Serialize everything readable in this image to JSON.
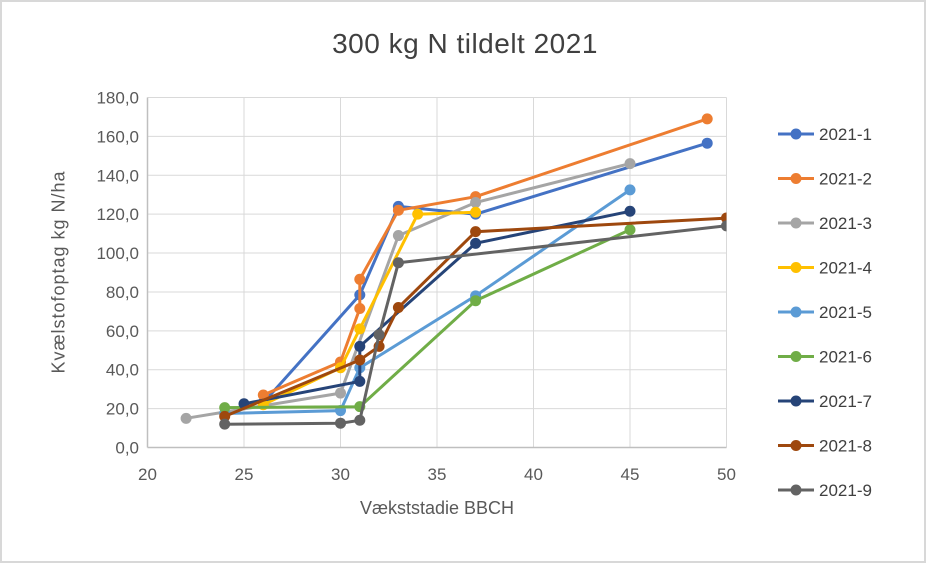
{
  "title": "300 kg N tildelt 2021",
  "x_axis": {
    "title": "Vækststadie BBCH",
    "ticks": [
      "20",
      "25",
      "30",
      "35",
      "40",
      "45",
      "50"
    ],
    "min": 20,
    "max": 50,
    "step": 5
  },
  "y_axis": {
    "title": "Kvælstofoptag kg N/ha",
    "ticks": [
      "0,0",
      "20,0",
      "40,0",
      "60,0",
      "80,0",
      "100,0",
      "120,0",
      "140,0",
      "160,0",
      "180,0"
    ],
    "min": 0,
    "max": 180,
    "step": 20
  },
  "legend": {
    "position": "right",
    "items": [
      "2021-1",
      "2021-2",
      "2021-3",
      "2021-4",
      "2021-5",
      "2021-6",
      "2021-7",
      "2021-8",
      "2021-9"
    ]
  },
  "grid_color": "#d9d9d9",
  "axis_line_color": "#bfbfbf",
  "chart_data": {
    "type": "line",
    "title": "300 kg N tildelt 2021",
    "xlabel": "Vækststadie BBCH",
    "ylabel": "Kvælstofoptag kg N/ha",
    "xlim": [
      20,
      50
    ],
    "ylim": [
      0,
      180
    ],
    "grid": true,
    "legend_position": "right",
    "series": [
      {
        "name": "2021-1",
        "color": "#4472C4",
        "points": [
          [
            26,
            23
          ],
          [
            31,
            78.5
          ],
          [
            33,
            124
          ],
          [
            37,
            120
          ],
          [
            49,
            156.5
          ]
        ]
      },
      {
        "name": "2021-2",
        "color": "#ED7D31",
        "points": [
          [
            26,
            27
          ],
          [
            30,
            44
          ],
          [
            31,
            71.5
          ],
          [
            31,
            86.5
          ],
          [
            33,
            122
          ],
          [
            37,
            129
          ],
          [
            49,
            169
          ]
        ]
      },
      {
        "name": "2021-3",
        "color": "#A5A5A5",
        "points": [
          [
            22,
            15
          ],
          [
            30,
            28
          ],
          [
            33,
            109
          ],
          [
            37,
            126
          ],
          [
            45,
            146
          ]
        ]
      },
      {
        "name": "2021-4",
        "color": "#FFC000",
        "points": [
          [
            26,
            22
          ],
          [
            30,
            41
          ],
          [
            31,
            61
          ],
          [
            34,
            120
          ],
          [
            37,
            121
          ]
        ]
      },
      {
        "name": "2021-5",
        "color": "#5B9BD5",
        "points": [
          [
            24,
            17.5
          ],
          [
            30,
            19
          ],
          [
            31,
            41
          ],
          [
            37,
            78
          ],
          [
            45,
            132.5
          ]
        ]
      },
      {
        "name": "2021-6",
        "color": "#70AD47",
        "points": [
          [
            24,
            20.5
          ],
          [
            31,
            21
          ],
          [
            37,
            75.5
          ],
          [
            45,
            112
          ]
        ]
      },
      {
        "name": "2021-7",
        "color": "#264478",
        "points": [
          [
            25,
            22.5
          ],
          [
            31,
            34
          ],
          [
            31,
            52
          ],
          [
            37,
            105
          ],
          [
            45,
            121.5
          ]
        ]
      },
      {
        "name": "2021-8",
        "color": "#9E480E",
        "points": [
          [
            24,
            16
          ],
          [
            31,
            45
          ],
          [
            32,
            52
          ],
          [
            33,
            72
          ],
          [
            37,
            111
          ],
          [
            50,
            118
          ]
        ]
      },
      {
        "name": "2021-9",
        "color": "#636363",
        "points": [
          [
            24,
            12
          ],
          [
            30,
            12.5
          ],
          [
            31,
            14
          ],
          [
            32,
            58
          ],
          [
            33,
            95
          ],
          [
            50,
            114
          ]
        ]
      }
    ]
  }
}
